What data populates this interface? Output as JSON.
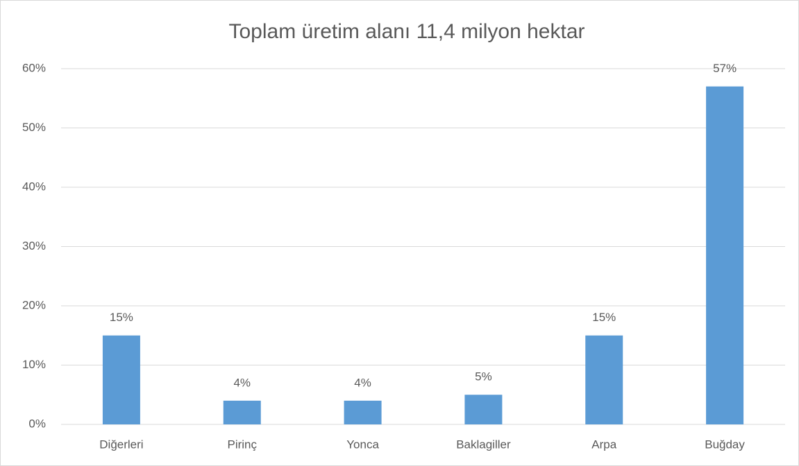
{
  "chart_data": {
    "type": "bar",
    "title": "Toplam üretim alanı 11,4 milyon hektar",
    "categories": [
      "Diğerleri",
      "Pirinç",
      "Yonca",
      "Baklagiller",
      "Arpa",
      "Buğday"
    ],
    "values": [
      15,
      4,
      4,
      5,
      15,
      57
    ],
    "value_labels": [
      "15%",
      "4%",
      "4%",
      "5%",
      "15%",
      "57%"
    ],
    "color": "#5b9bd5",
    "ylim": [
      0,
      60
    ],
    "yticks": [
      {
        "value": 0,
        "label": "0%"
      },
      {
        "value": 10,
        "label": "10%"
      },
      {
        "value": 20,
        "label": "20%"
      },
      {
        "value": 30,
        "label": "30%"
      },
      {
        "value": 40,
        "label": "40%"
      },
      {
        "value": 50,
        "label": "50%"
      },
      {
        "value": 60,
        "label": "60%"
      }
    ],
    "grid": true
  }
}
